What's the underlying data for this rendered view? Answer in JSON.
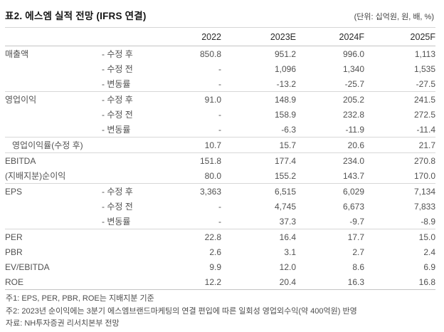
{
  "header": {
    "title": "표2. 에스엠 실적 전망 (IFRS 연결)",
    "unit_note": "(단위: 십억원, 원, 배, %)"
  },
  "table": {
    "columns": [
      "2022",
      "2023E",
      "2024F",
      "2025F"
    ],
    "rows": [
      {
        "label": "매출액",
        "sub": "- 수정 후",
        "values": [
          "850.8",
          "951.2",
          "996.0",
          "1,113"
        ],
        "group_start": false,
        "indent": false
      },
      {
        "label": "",
        "sub": "- 수정 전",
        "values": [
          "-",
          "1,096",
          "1,340",
          "1,535"
        ],
        "group_start": false,
        "indent": false
      },
      {
        "label": "",
        "sub": "- 변동률",
        "values": [
          "-",
          "-13.2",
          "-25.7",
          "-27.5"
        ],
        "group_start": false,
        "indent": false
      },
      {
        "label": "영업이익",
        "sub": "- 수정 후",
        "values": [
          "91.0",
          "148.9",
          "205.2",
          "241.5"
        ],
        "group_start": true,
        "indent": false
      },
      {
        "label": "",
        "sub": "- 수정 전",
        "values": [
          "-",
          "158.9",
          "232.8",
          "272.5"
        ],
        "group_start": false,
        "indent": false
      },
      {
        "label": "",
        "sub": "- 변동률",
        "values": [
          "-",
          "-6.3",
          "-11.9",
          "-11.4"
        ],
        "group_start": false,
        "indent": false
      },
      {
        "label": "영업이익률(수정 후)",
        "sub": "",
        "values": [
          "10.7",
          "15.7",
          "20.6",
          "21.7"
        ],
        "group_start": true,
        "indent": true
      },
      {
        "label": "EBITDA",
        "sub": "",
        "values": [
          "151.8",
          "177.4",
          "234.0",
          "270.8"
        ],
        "group_start": true,
        "indent": false
      },
      {
        "label": "(지배지분)순이익",
        "sub": "",
        "values": [
          "80.0",
          "155.2",
          "143.7",
          "170.0"
        ],
        "group_start": false,
        "indent": false
      },
      {
        "label": "EPS",
        "sub": "- 수정 후",
        "values": [
          "3,363",
          "6,515",
          "6,029",
          "7,134"
        ],
        "group_start": true,
        "indent": false
      },
      {
        "label": "",
        "sub": "- 수정 전",
        "values": [
          "-",
          "4,745",
          "6,673",
          "7,833"
        ],
        "group_start": false,
        "indent": false
      },
      {
        "label": "",
        "sub": "- 변동률",
        "values": [
          "-",
          "37.3",
          "-9.7",
          "-8.9"
        ],
        "group_start": false,
        "indent": false
      },
      {
        "label": "PER",
        "sub": "",
        "values": [
          "22.8",
          "16.4",
          "17.7",
          "15.0"
        ],
        "group_start": true,
        "indent": false
      },
      {
        "label": "PBR",
        "sub": "",
        "values": [
          "2.6",
          "3.1",
          "2.7",
          "2.4"
        ],
        "group_start": false,
        "indent": false
      },
      {
        "label": "EV/EBITDA",
        "sub": "",
        "values": [
          "9.9",
          "12.0",
          "8.6",
          "6.9"
        ],
        "group_start": false,
        "indent": false
      },
      {
        "label": "ROE",
        "sub": "",
        "values": [
          "12.2",
          "20.4",
          "16.3",
          "16.8"
        ],
        "group_start": false,
        "indent": false
      }
    ]
  },
  "footnotes": [
    "주1: EPS, PER, PBR, ROE는 지배지분 기준",
    "주2: 2023년 순이익에는 3분기 에스엠브랜드마케팅의 연결 편입에 따른 일회성 영업외수익(약 400억원) 반영",
    "자료: NH투자증권 리서치본부 전망"
  ]
}
